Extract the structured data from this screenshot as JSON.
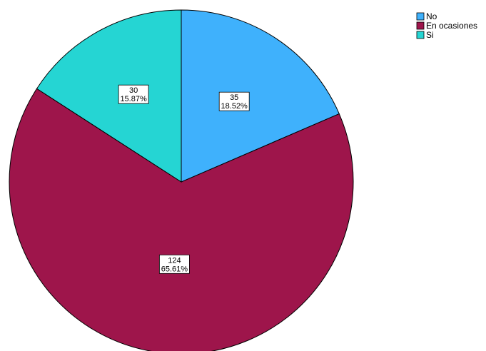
{
  "chart_data": {
    "type": "pie",
    "categories": [
      "No",
      "En ocasiones",
      "Si"
    ],
    "values": [
      35,
      124,
      30
    ],
    "percent_labels": [
      "18.52%",
      "65.61%",
      "15.87%"
    ],
    "colors": [
      "#3fb1fc",
      "#9e154b",
      "#25d5d3"
    ],
    "start_direction": "12 o'clock",
    "direction": "clockwise",
    "legend": {
      "position": "top-right",
      "entries": [
        "No",
        "En ocasiones",
        "Si"
      ]
    }
  }
}
